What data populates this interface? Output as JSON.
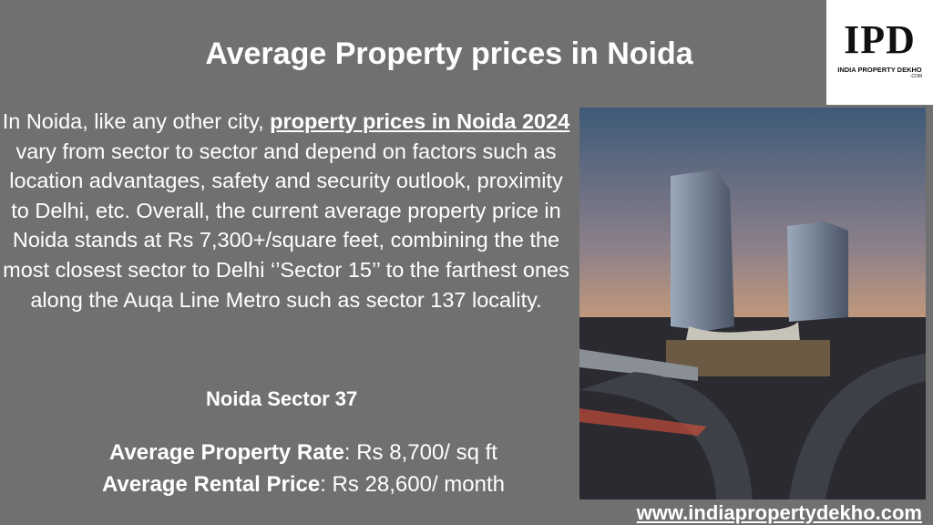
{
  "title": "Average Property prices in Noida",
  "logo": {
    "mark": "IPD",
    "name": "INDIA PROPERTY DEKHO",
    "suffix": ".COM"
  },
  "intro": {
    "before": "In Noida, like any other city, ",
    "link": "property prices in Noida 2024",
    "after": " vary from sector to sector and depend on factors such as location advantages, safety and security outlook, proximity to Delhi, etc. Overall, the current average property price in Noida stands at Rs 7,300+/square feet, combining the the most closest sector to Delhi ‘’Sector 15’’ to the farthest ones along the Auqa Line Metro such as sector 137 locality."
  },
  "sector": {
    "heading": "Noida Sector 37",
    "rows": [
      {
        "label": "Average Property Rate",
        "value": ": Rs 8,700/ sq ft"
      },
      {
        "label": "Average Rental Price",
        "value": ": Rs 28,600/ month"
      }
    ]
  },
  "website": "www.indiapropertydekho.com"
}
